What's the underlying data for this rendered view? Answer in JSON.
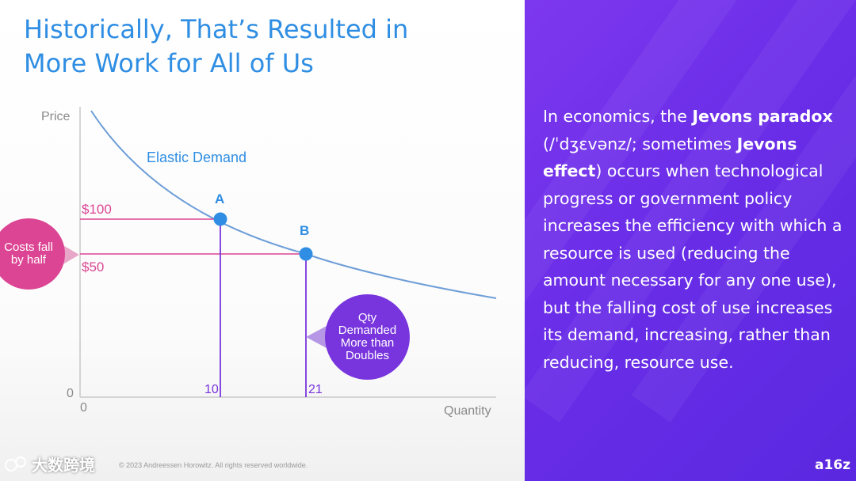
{
  "slide": {
    "title_line1": "Historically, That’s Resulted in",
    "title_line2": "More Work for All of Us",
    "footer": "© 2023 Andreessen Horowitz. All rights reserved worldwide.",
    "watermark": "大数跨境",
    "logo": "a16z"
  },
  "colors": {
    "title": "#2f8ee3",
    "pink": "#dc4593",
    "purple": "#7834dd",
    "panel": "#6a2de8"
  },
  "chart": {
    "y_axis_label": "Price",
    "x_axis_label": "Quantity",
    "origin_y": "0",
    "origin_x": "0",
    "curve_label": "Elastic Demand",
    "point_a_label": "A",
    "point_b_label": "B",
    "price_high": "$100",
    "price_low": "$50",
    "qty_a": "10",
    "qty_b": "21"
  },
  "chart_data": {
    "type": "line",
    "series": [
      {
        "name": "Elastic Demand",
        "points": [
          {
            "label": "A",
            "price": 100,
            "quantity": 10
          },
          {
            "label": "B",
            "price": 50,
            "quantity": 21
          }
        ]
      }
    ],
    "xlabel": "Quantity",
    "ylabel": "Price"
  },
  "callouts": {
    "costs_line1": "Costs fall",
    "costs_line2": "by half",
    "qty_line1": "Qty",
    "qty_line2": "Demanded",
    "qty_line3": "More than",
    "qty_line4": "Doubles"
  },
  "definition": {
    "p1": "In economics, the ",
    "b1": "Jevons paradox",
    "p2": " (/ˈdʒɛvənz/; sometimes ",
    "b2": "Jevons effect",
    "p3": ") occurs when technological progress or government policy increases the efficiency with which a resource is used (reducing the amount necessary for any one use), but the falling cost of use increases its demand, increasing, rather than reducing, resource use."
  }
}
